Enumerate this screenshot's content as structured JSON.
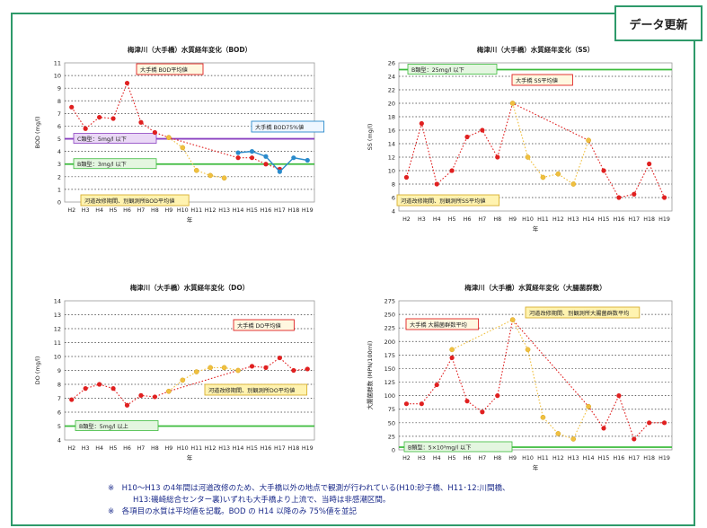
{
  "update_button": "データ更新",
  "notes": [
    "※　H10～H13 の4年間は河道改修のため、大手橋以外の地点で観測が行われている(H10:砂子橋、H11･12:川間橋、",
    "H13:磯崎総合センター裏)いずれも大手橋より上流で、当時は非感潮区間。",
    "※　各項目の水質は平均値を記載。BOD の H14 以降のみ 75%値を並記"
  ],
  "chart_data": [
    {
      "type": "line",
      "title": "梅津川（大手橋）水質経年変化（BOD）",
      "ylabel": "BOD (mg/l)",
      "xlabel": "年",
      "categories": [
        "H2",
        "H3",
        "H4",
        "H5",
        "H6",
        "H7",
        "H8",
        "H9",
        "H10",
        "H11",
        "H12",
        "H13",
        "H14",
        "H15",
        "H16",
        "H17",
        "H18",
        "H19"
      ],
      "ylim": [
        0,
        11
      ],
      "yticks": [
        0,
        1,
        2,
        3,
        4,
        5,
        6,
        7,
        8,
        9,
        10,
        11
      ],
      "grid": true,
      "series": [
        {
          "name": "大手橋 BOD平均値",
          "color": "#e02020",
          "values": [
            7.5,
            5.8,
            6.7,
            6.6,
            9.4,
            6.3,
            5.5,
            5.1,
            null,
            null,
            null,
            null,
            3.5,
            3.5,
            3.0,
            2.6,
            null,
            null
          ]
        },
        {
          "name": "河道改修期間、別観測所BOD平均値",
          "color": "#f0c040",
          "values": [
            null,
            null,
            null,
            null,
            null,
            null,
            null,
            5.1,
            4.3,
            2.5,
            2.1,
            1.9,
            null,
            null,
            null,
            null,
            null,
            null
          ]
        },
        {
          "name": "大手橋 BOD75%値",
          "color": "#2a8acb",
          "values": [
            null,
            null,
            null,
            null,
            null,
            null,
            null,
            null,
            null,
            null,
            null,
            null,
            3.9,
            4.0,
            3.6,
            2.4,
            3.5,
            3.3
          ]
        }
      ],
      "thresholds": [
        {
          "label": "C類型：5mg/l 以下",
          "value": 5,
          "color": "#8a40c0"
        },
        {
          "label": "B類型：3mg/l 以下",
          "value": 3,
          "color": "#3cbb3c"
        }
      ],
      "annotations": [
        "大手橋 BOD平均値",
        "大手橋 BOD75%値",
        "河道改修期間、別観測所BOD平均値"
      ]
    },
    {
      "type": "line",
      "title": "梅津川（大手橋）水質経年変化（SS）",
      "ylabel": "SS (mg/l)",
      "xlabel": "年",
      "categories": [
        "H2",
        "H3",
        "H4",
        "H5",
        "H6",
        "H7",
        "H8",
        "H9",
        "H10",
        "H11",
        "H12",
        "H13",
        "H14",
        "H15",
        "H16",
        "H17",
        "H18",
        "H19"
      ],
      "ylim": [
        4,
        26
      ],
      "yticks": [
        4,
        6,
        8,
        10,
        12,
        14,
        16,
        18,
        20,
        22,
        24,
        26
      ],
      "grid": true,
      "series": [
        {
          "name": "大手橋 SS平均値",
          "color": "#e02020",
          "values": [
            9,
            17,
            8,
            10,
            15,
            16,
            12,
            20,
            null,
            null,
            null,
            null,
            14.5,
            10,
            6,
            6.5,
            11,
            6
          ]
        },
        {
          "name": "河道改修期間、別観測所SS平均値",
          "color": "#f0c040",
          "values": [
            null,
            null,
            null,
            null,
            null,
            null,
            null,
            20,
            12,
            9,
            9.5,
            8,
            14.5,
            null,
            null,
            null,
            null,
            null
          ]
        }
      ],
      "thresholds": [
        {
          "label": "B類型：25mg/l 以下",
          "value": 25,
          "color": "#3cbb3c"
        }
      ],
      "annotations": [
        "大手橋 SS平均値",
        "河道改修期間、別観測所SS平均値"
      ]
    },
    {
      "type": "line",
      "title": "梅津川（大手橋）水質経年変化（DO）",
      "ylabel": "DO (mg/l)",
      "xlabel": "年",
      "categories": [
        "H2",
        "H3",
        "H4",
        "H5",
        "H6",
        "H7",
        "H8",
        "H9",
        "H10",
        "H11",
        "H12",
        "H13",
        "H14",
        "H15",
        "H16",
        "H17",
        "H18",
        "H19"
      ],
      "ylim": [
        4,
        14
      ],
      "yticks": [
        4,
        5,
        6,
        7,
        8,
        9,
        10,
        11,
        12,
        13,
        14
      ],
      "grid": true,
      "series": [
        {
          "name": "大手橋 DO平均値",
          "color": "#e02020",
          "values": [
            6.9,
            7.7,
            8.0,
            7.7,
            6.5,
            7.2,
            7.1,
            7.5,
            null,
            null,
            null,
            null,
            9.0,
            9.3,
            9.2,
            9.9,
            9.0,
            9.1
          ]
        },
        {
          "name": "河道改修期間、別観測所DO平均値",
          "color": "#f0c040",
          "values": [
            null,
            null,
            null,
            null,
            null,
            null,
            null,
            7.5,
            8.3,
            8.9,
            9.2,
            9.2,
            9.0,
            null,
            null,
            null,
            null,
            null
          ]
        }
      ],
      "thresholds": [
        {
          "label": "B類型：5mg/l 以上",
          "value": 5,
          "color": "#3cbb3c"
        }
      ],
      "annotations": [
        "大手橋 DO平均値",
        "河道改修期間、別観測所DO平均値"
      ]
    },
    {
      "type": "line",
      "title": "梅津川（大手橋）水質経年変化（大腸菌群数）",
      "ylabel": "大腸菌群数 (MPN/100ml)",
      "xlabel": "年",
      "categories": [
        "H2",
        "H3",
        "H4",
        "H5",
        "H6",
        "H7",
        "H8",
        "H9",
        "H10",
        "H11",
        "H12",
        "H13",
        "H14",
        "H15",
        "H16",
        "H17",
        "H18",
        "H19"
      ],
      "ylim": [
        0,
        275
      ],
      "yticks": [
        0,
        25,
        50,
        75,
        100,
        125,
        150,
        175,
        200,
        225,
        250,
        275
      ],
      "grid": true,
      "series": [
        {
          "name": "大手橋 大腸菌群数平均",
          "color": "#e02020",
          "values": [
            85,
            85,
            120,
            170,
            90,
            70,
            100,
            240,
            null,
            null,
            null,
            null,
            80,
            40,
            100,
            20,
            50,
            50
          ]
        },
        {
          "name": "河道改修期間、別観測所大腸菌群数平均",
          "color": "#f0c040",
          "values": [
            null,
            null,
            null,
            185,
            null,
            null,
            null,
            240,
            185,
            60,
            30,
            20,
            80,
            null,
            null,
            null,
            null,
            null
          ]
        }
      ],
      "thresholds": [
        {
          "label": "B類型：5×10³mg/l 以下",
          "value": 5,
          "color": "#3cbb3c"
        }
      ],
      "annotations": [
        "大手橋 大腸菌群数平均",
        "河道改修期間、別観測所大腸菌群数平均"
      ]
    }
  ]
}
